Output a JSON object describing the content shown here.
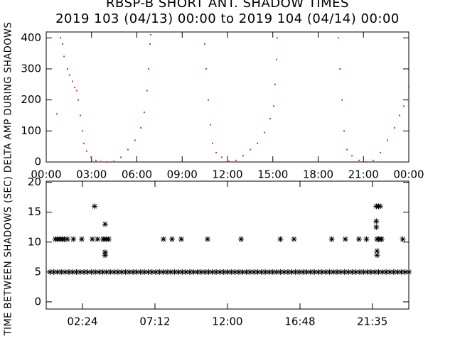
{
  "chart_data": [
    {
      "type": "scatter",
      "title": "RBSP-B SHORT ANT. SHADOW TIMES",
      "subtitle": "2019 103 (04/13) 00:00 to 2019 104 (04/14) 00:00",
      "y_label": "DELTA AMP DURING SHADOWS",
      "color": "#e8341c",
      "x": [
        0.7,
        0.94,
        1.08,
        1.18,
        1.41,
        1.55,
        1.74,
        1.88,
        2.02,
        2.12,
        2.26,
        2.4,
        2.49,
        2.68,
        2.96,
        3.29,
        3.62,
        4.0,
        4.47,
        4.94,
        5.41,
        5.88,
        6.26,
        6.49,
        6.68,
        6.78,
        6.87,
        6.92,
        10.49,
        10.59,
        10.73,
        10.87,
        11.01,
        11.25,
        11.62,
        12.09,
        12.56,
        13.04,
        13.51,
        13.98,
        14.45,
        14.82,
        15.06,
        15.15,
        15.25,
        15.29,
        19.34,
        19.44,
        19.58,
        19.72,
        19.91,
        20.24,
        20.71,
        21.18,
        21.65,
        22.12,
        22.59,
        23.06,
        23.39,
        23.67,
        23.96,
        24.0
      ],
      "values": [
        155,
        400,
        380,
        340,
        300,
        280,
        260,
        240,
        230,
        200,
        150,
        100,
        60,
        35,
        15,
        5,
        1,
        0,
        2,
        15,
        40,
        70,
        110,
        160,
        230,
        300,
        380,
        410,
        380,
        300,
        200,
        120,
        60,
        30,
        15,
        2,
        5,
        20,
        40,
        60,
        95,
        140,
        180,
        250,
        330,
        400,
        400,
        300,
        200,
        100,
        40,
        20,
        5,
        0,
        5,
        30,
        70,
        110,
        150,
        180,
        200,
        240
      ],
      "xlim": [
        0,
        24
      ],
      "ylim": [
        0,
        419
      ],
      "xticks": [
        {
          "value": 0,
          "label": "00:00"
        },
        {
          "value": 3,
          "label": "03:00"
        },
        {
          "value": 6,
          "label": "06:00"
        },
        {
          "value": 9,
          "label": "09:00"
        },
        {
          "value": 12,
          "label": "12:00"
        },
        {
          "value": 15,
          "label": "15:00"
        },
        {
          "value": 18,
          "label": "18:00"
        },
        {
          "value": 21,
          "label": "21:00"
        },
        {
          "value": 24,
          "label": "00:00"
        }
      ],
      "yticks": [
        0,
        100,
        200,
        300,
        400
      ]
    },
    {
      "type": "asterisk",
      "y_label": "TIME BETWEEN SHADOWS (SEC)",
      "color": "#000000",
      "x": [
        0.25,
        0.5,
        0.75,
        1,
        1.25,
        1.5,
        1.75,
        2,
        2.25,
        2.5,
        2.75,
        3,
        3.25,
        3.5,
        3.75,
        4,
        4.25,
        4.5,
        4.75,
        5,
        5.25,
        5.5,
        5.75,
        6,
        6.25,
        6.5,
        6.75,
        7,
        7.25,
        7.5,
        7.75,
        8,
        8.25,
        8.5,
        8.75,
        9,
        9.25,
        9.5,
        9.75,
        10,
        10.25,
        10.5,
        10.75,
        11,
        11.25,
        11.5,
        11.75,
        12,
        12.25,
        12.5,
        12.75,
        13,
        13.25,
        13.5,
        13.75,
        14,
        14.25,
        14.5,
        14.75,
        15,
        15.25,
        15.5,
        15.75,
        16,
        16.25,
        16.5,
        16.75,
        17,
        17.25,
        17.5,
        17.75,
        18,
        18.25,
        18.5,
        18.75,
        19,
        19.25,
        19.5,
        19.75,
        20,
        20.25,
        20.5,
        20.75,
        21,
        21.25,
        21.5,
        21.75,
        22,
        22.25,
        22.5,
        22.75,
        23,
        23.25,
        23.5,
        23.75,
        24,
        0.6,
        0.75,
        0.9,
        1.05,
        1.2,
        1.4,
        1.8,
        2.35,
        3.05,
        3.4,
        3.76,
        3.9,
        4.0,
        4.14,
        7.76,
        8.33,
        8.94,
        10.68,
        12.9,
        15.5,
        16.4,
        18.9,
        19.8,
        20.7,
        21.2,
        21.9,
        22.0,
        22.1,
        22.2,
        23.6,
        3.2,
        3.9,
        3.9,
        3.9,
        21.85,
        21.85,
        22.0,
        22.1,
        21.9,
        21.9,
        21.85
      ],
      "values": [
        5,
        5,
        5,
        5,
        5,
        5,
        5,
        5,
        5,
        5,
        5,
        5,
        5,
        5,
        5,
        5,
        5,
        5,
        5,
        5,
        5,
        5,
        5,
        5,
        5,
        5,
        5,
        5,
        5,
        5,
        5,
        5,
        5,
        5,
        5,
        5,
        5,
        5,
        5,
        5,
        5,
        5,
        5,
        5,
        5,
        5,
        5,
        5,
        5,
        5,
        5,
        5,
        5,
        5,
        5,
        5,
        5,
        5,
        5,
        5,
        5,
        5,
        5,
        5,
        5,
        5,
        5,
        5,
        5,
        5,
        5,
        5,
        5,
        5,
        5,
        5,
        5,
        5,
        5,
        5,
        5,
        5,
        5,
        5,
        5,
        5,
        5,
        5,
        5,
        5,
        5,
        5,
        5,
        5,
        5,
        5,
        10.5,
        10.5,
        10.5,
        10.5,
        10.5,
        10.5,
        10.5,
        10.5,
        10.5,
        10.5,
        10.5,
        10.5,
        10.5,
        10.5,
        10.5,
        10.5,
        10.5,
        10.5,
        10.5,
        10.5,
        10.5,
        10.5,
        10.5,
        10.5,
        10.5,
        10.5,
        10.5,
        10.5,
        10.5,
        10.5,
        16,
        13,
        8.3,
        7.8,
        13.5,
        12.5,
        16,
        16,
        8.5,
        7.8,
        16
      ],
      "xlim": [
        0,
        24
      ],
      "ylim": [
        -1.2,
        20.2
      ],
      "xticks": [
        {
          "value": 2.4,
          "label": "02:24"
        },
        {
          "value": 7.2,
          "label": "07:12"
        },
        {
          "value": 12,
          "label": "12:00"
        },
        {
          "value": 16.8,
          "label": "16:48"
        },
        {
          "value": 21.5833,
          "label": "21:35"
        }
      ],
      "yticks": [
        0,
        5,
        10,
        15,
        20
      ]
    }
  ]
}
